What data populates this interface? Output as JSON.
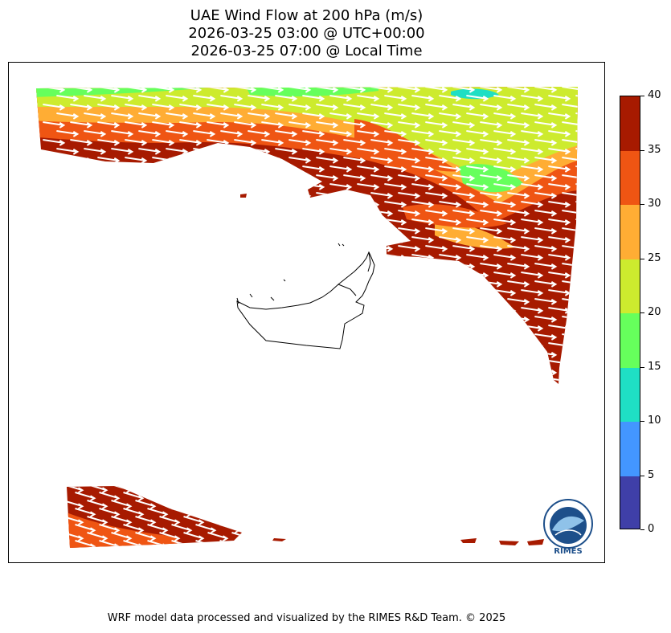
{
  "title": {
    "line1": "UAE Wind Flow at 200 hPa (m/s)",
    "line2": "2026-03-25 03:00 @ UTC+00:00",
    "line3": "2026-03-25 07:00 @ Local Time"
  },
  "colorbar": {
    "levels": [
      "0",
      "5",
      "10",
      "15",
      "20",
      "25",
      "30",
      "35",
      "40"
    ],
    "colors": [
      "#3f3fa8",
      "#4396ff",
      "#1fdfc4",
      "#66ff5c",
      "#cdeb2e",
      "#ffad34",
      "#ef5513",
      "#a71a00"
    ]
  },
  "logo": {
    "text": "RIMES"
  },
  "footer": "WRF model data processed and visualized by the RIMES R&D Team. © 2025"
}
